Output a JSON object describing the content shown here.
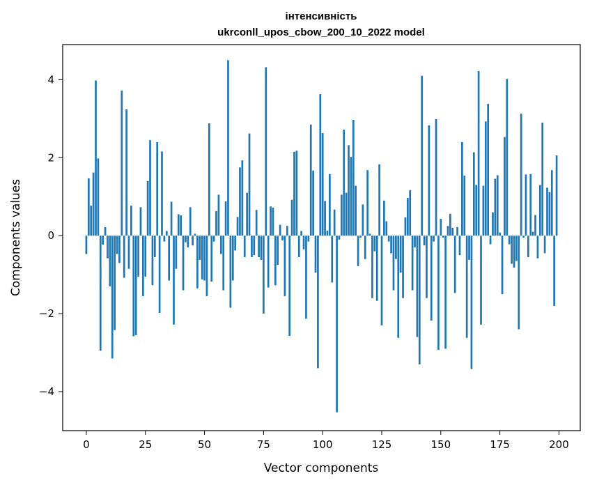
{
  "chart_data": {
    "type": "bar",
    "title_line1": "інтенсивність",
    "title_line2": "ukrconll_upos_cbow_200_10_2022 model",
    "xlabel": "Vector components",
    "ylabel": "Components values",
    "xlim": [
      -10,
      209
    ],
    "ylim": [
      -5.0,
      4.9
    ],
    "xticks": [
      0,
      25,
      50,
      75,
      100,
      125,
      150,
      175,
      200
    ],
    "yticks": [
      -4,
      -2,
      0,
      2,
      4
    ],
    "ytick_labels": [
      "−4",
      "−2",
      "0",
      "2",
      "4"
    ],
    "bar_color": "#1f77b4",
    "grid": false,
    "values": [
      -0.47,
      1.47,
      0.77,
      1.62,
      3.98,
      1.98,
      -2.95,
      -0.23,
      0.22,
      -0.58,
      -1.3,
      -3.15,
      -2.42,
      -0.47,
      -0.7,
      3.72,
      -1.08,
      3.24,
      -0.85,
      0.77,
      -2.58,
      -2.55,
      -1.05,
      0.73,
      -1.55,
      -1.05,
      1.4,
      2.45,
      -1.27,
      -0.55,
      2.4,
      -1.98,
      2.16,
      -0.15,
      0.12,
      -1.15,
      0.87,
      -2.28,
      -0.85,
      0.55,
      0.52,
      -1.4,
      -0.17,
      -0.3,
      0.73,
      -0.25,
      0.05,
      -1.35,
      -0.62,
      -1.12,
      -1.15,
      -1.55,
      2.88,
      -1.18,
      -0.15,
      0.63,
      1.05,
      -0.47,
      -1.4,
      0.88,
      4.5,
      -1.85,
      -1.15,
      -0.38,
      0.48,
      1.75,
      1.93,
      -0.55,
      1.1,
      2.62,
      -0.55,
      -0.5,
      0.66,
      -0.55,
      -0.62,
      -2.0,
      4.32,
      -1.33,
      0.75,
      0.72,
      -1.27,
      -0.75,
      0.28,
      -0.12,
      -1.55,
      0.25,
      -2.57,
      0.92,
      2.15,
      2.18,
      -0.55,
      0.12,
      -0.35,
      -2.13,
      -0.15,
      2.85,
      1.67,
      -0.95,
      -3.4,
      3.63,
      2.63,
      0.89,
      0.13,
      1.58,
      -1.2,
      0.67,
      -4.53,
      -0.1,
      1.05,
      2.72,
      1.1,
      2.32,
      2.02,
      2.97,
      1.28,
      -0.78,
      -0.05,
      0.8,
      -0.6,
      1.68,
      0.05,
      -1.6,
      -0.4,
      -1.67,
      1.83,
      -2.3,
      0.9,
      0.37,
      -0.15,
      -0.45,
      -1.4,
      -0.6,
      -2.62,
      -0.95,
      -1.6,
      0.47,
      0.97,
      1.17,
      -1.4,
      -0.3,
      -2.6,
      -3.3,
      4.1,
      -0.25,
      -1.6,
      2.83,
      -2.18,
      -0.15,
      2.99,
      -2.93,
      0.43,
      -0.05,
      -2.9,
      0.25,
      0.56,
      0.2,
      -1.47,
      0.22,
      -0.5,
      2.4,
      1.54,
      -2.62,
      -0.62,
      -3.42,
      2.14,
      1.3,
      4.22,
      -2.28,
      1.28,
      2.93,
      3.38,
      -0.22,
      0.6,
      1.46,
      1.55,
      0.08,
      -1.5,
      2.53,
      4.02,
      -0.22,
      -0.72,
      -0.82,
      -0.65,
      -2.4,
      3.13,
      -0.05,
      1.57,
      -0.55,
      1.58,
      0.1,
      0.53,
      -0.58,
      1.3,
      2.9,
      -0.45,
      1.23,
      1.12,
      1.68,
      -1.8,
      2.06
    ]
  }
}
